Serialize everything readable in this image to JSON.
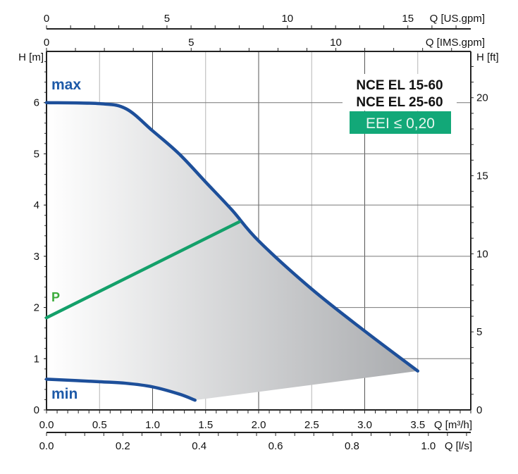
{
  "chart_data": {
    "type": "line",
    "title": [
      "NCE EL 15-60",
      "NCE EL 25-60"
    ],
    "badge": "EEI ≤ 0,20",
    "xlabel": "Q [m³/h]",
    "ylabel": "H [m]",
    "y2label": "H [ft]",
    "xlim": [
      0,
      4.0
    ],
    "ylim": [
      0,
      7.0
    ],
    "grid": true,
    "x_ticks": [
      "0.0",
      "0.5",
      "1.0",
      "1.5",
      "2.0",
      "2.5",
      "3.0",
      "3.5"
    ],
    "y_ticks": [
      "0",
      "1",
      "2",
      "3",
      "4",
      "5",
      "6"
    ],
    "secondary_axes": {
      "us_gpm": {
        "label": "Q [US.gpm]",
        "ticks": [
          "0",
          "5",
          "10",
          "15"
        ],
        "per_m3h": 4.403
      },
      "ims_gpm": {
        "label": "Q [IMS.gpm]",
        "ticks": [
          "0",
          "5",
          "10"
        ],
        "per_m3h": 3.666
      },
      "ls": {
        "label": "Q [l/s]",
        "ticks": [
          "0.0",
          "0.2",
          "0.4",
          "0.6",
          "0.8",
          "1.0"
        ],
        "per_m3h": 0.27778
      },
      "ft": {
        "label": "H [ft]",
        "ticks": [
          "0",
          "5",
          "10",
          "15",
          "20"
        ],
        "per_m": 3.2808
      }
    },
    "series": [
      {
        "name": "max",
        "color": "#1d4f9a",
        "x": [
          0,
          0.5,
          0.75,
          1.0,
          1.25,
          1.5,
          1.75,
          2.0,
          2.5,
          3.0,
          3.5
        ],
        "y": [
          6.0,
          5.98,
          5.88,
          5.45,
          5.0,
          4.45,
          3.9,
          3.3,
          2.36,
          1.54,
          0.76
        ]
      },
      {
        "name": "min",
        "color": "#1d4f9a",
        "x": [
          0,
          0.5,
          0.75,
          1.0,
          1.25,
          1.4
        ],
        "y": [
          0.6,
          0.55,
          0.52,
          0.45,
          0.31,
          0.19
        ]
      },
      {
        "name": "P",
        "color": "#14a06a",
        "x": [
          0,
          1.815
        ],
        "y": [
          1.8,
          3.67
        ]
      }
    ],
    "labels": {
      "max": "max",
      "min": "min",
      "P": "P"
    },
    "colors": {
      "label_blue": "#1e5aa8",
      "label_green": "#3aab3a",
      "badge": "#12a878"
    }
  }
}
